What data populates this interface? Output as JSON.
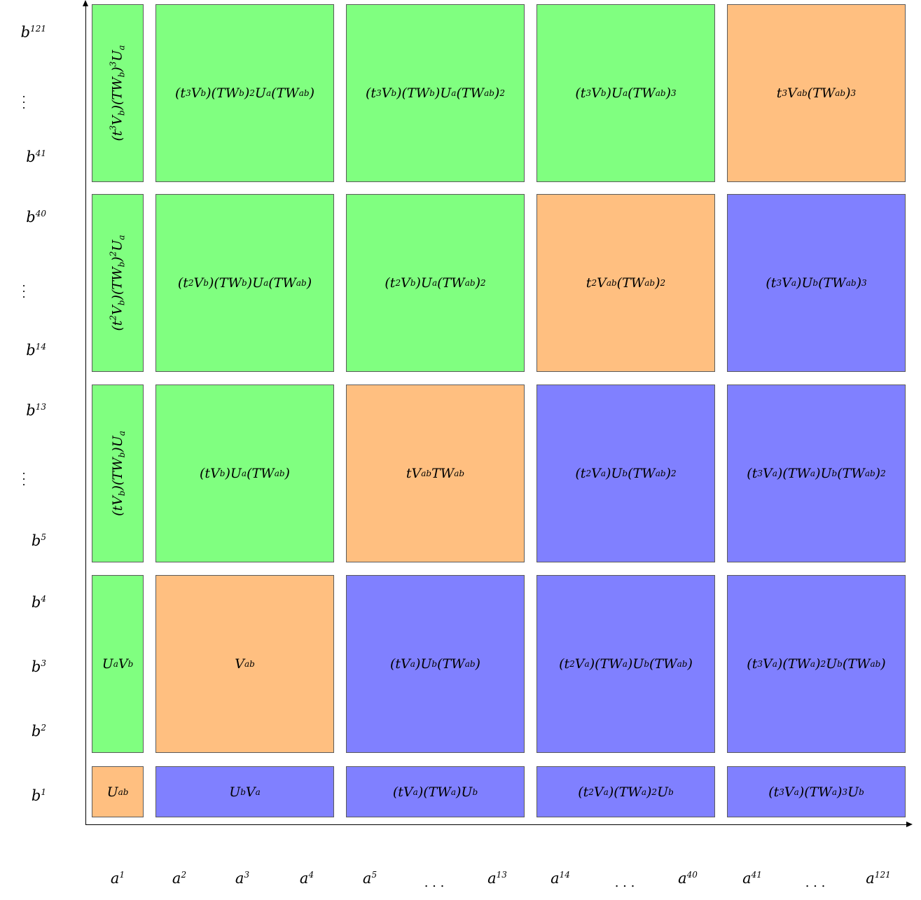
{
  "y_axis_labels": {
    "b121": "121",
    "b41": "41",
    "b40": "40",
    "b14": "14",
    "b13": "13",
    "b5": "5",
    "b4": "4",
    "b3": "3",
    "b2": "2",
    "b1": "1",
    "base": "b"
  },
  "x_axis_labels": {
    "base": "a",
    "a1": "1",
    "a2": "2",
    "a3": "3",
    "a4": "4",
    "a5": "5",
    "a13": "13",
    "a14": "14",
    "a40": "40",
    "a41": "41",
    "a121": "121"
  },
  "colors": {
    "green": "#80ff80",
    "orange": "#ffbf80",
    "blue": "#8080ff"
  },
  "cells": {
    "r1c1": "U_ab",
    "r1c2": "U_b V_a",
    "r1c3": "(tV_a)(TW_a)U_b",
    "r1c4": "(t^2V_a)(TW_a)^2U_b",
    "r1c5": "(t^3V_a)(TW_a)^3U_b",
    "r2c1": "U_a V_b",
    "r2c2": "V_ab",
    "r2c3": "(tV_a)U_b(TW_ab)",
    "r2c4": "(t^2V_a)(TW_a)U_b(TW_ab)",
    "r2c5": "(t^3V_a)(TW_a)^2U_b(TW_ab)",
    "r3c1": "(tV_b)(TW_b)U_a",
    "r3c2": "(tV_b)U_a(TW_ab)",
    "r3c3": "tV_ab TW_ab",
    "r3c4": "(t^2V_a)U_b(TW_ab)^2",
    "r3c5": "(t^3V_a)(TW_a)U_b(TW_ab)^2",
    "r4c1": "(t^2V_b)(TW_b)^2U_a",
    "r4c2": "(t^2V_b)(TW_b)U_a(TW_ab)",
    "r4c3": "(t^2V_b)U_a(TW_ab)^2",
    "r4c4": "t^2V_ab(TW_ab)^2",
    "r4c5": "(t^3V_a)U_b(TW_ab)^3",
    "r5c1": "(t^3V_b)(TW_b)^3U_a",
    "r5c2": "(t^3V_b)(TW_b)^2U_a(TW_ab)",
    "r5c3": "(t^3V_b)(TW_b)U_a(TW_ab)^2",
    "r5c4": "(t^3V_b)U_a(TW_ab)^3",
    "r5c5": "t^3V_ab(TW_ab)^3"
  }
}
